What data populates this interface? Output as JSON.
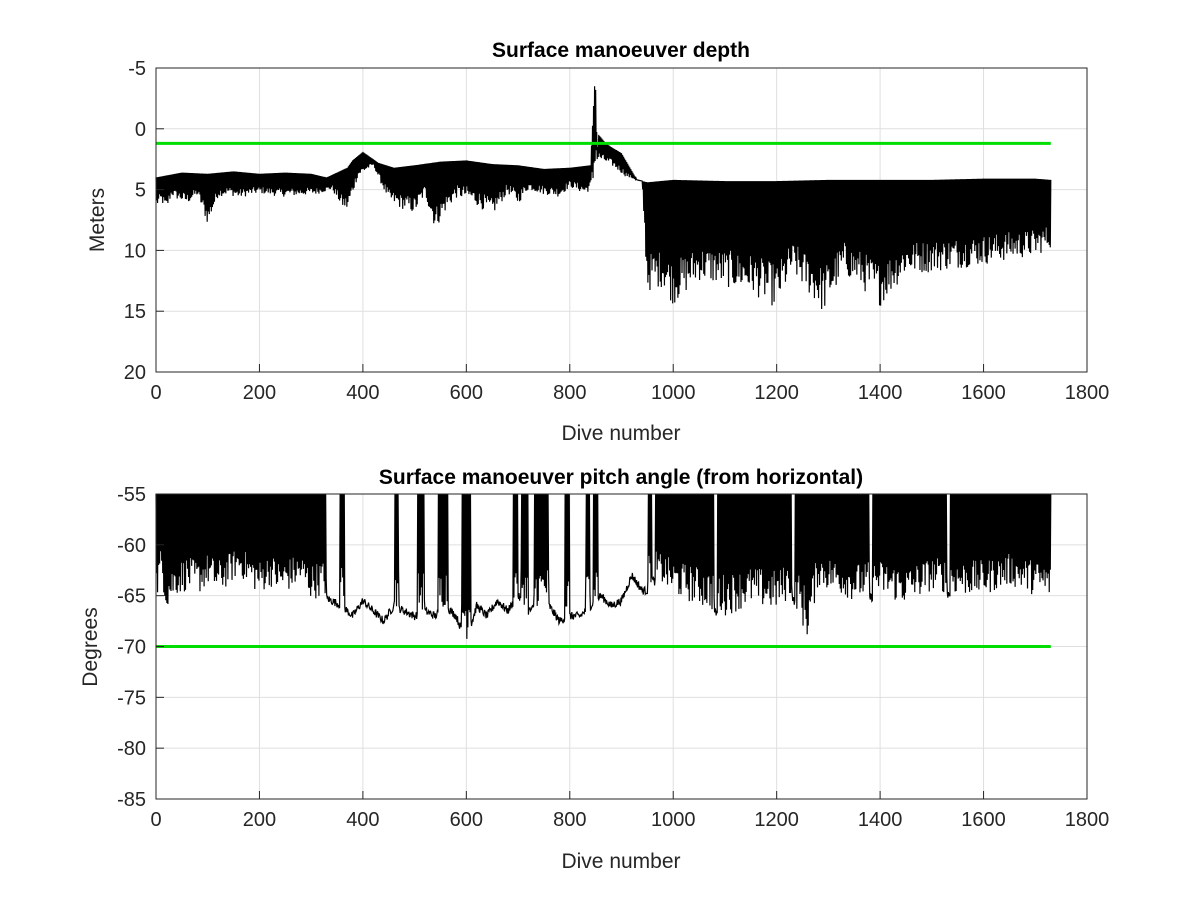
{
  "chart_data": [
    {
      "type": "line",
      "title": "Surface manoeuver depth",
      "xlabel": "Dive number",
      "ylabel": "Meters",
      "xlim": [
        0,
        1800
      ],
      "ylim": [
        -5,
        20
      ],
      "y_reversed": true,
      "grid": true,
      "xticks": [
        0,
        200,
        400,
        600,
        800,
        1000,
        1200,
        1400,
        1600,
        1800
      ],
      "yticks": [
        -5,
        0,
        5,
        10,
        15,
        20
      ],
      "reference_line": {
        "y": 1.2,
        "x_start": 0,
        "x_end": 1730,
        "color": "#00dd00"
      },
      "series": [
        {
          "color": "#000000",
          "upper": {
            "x": [
              0,
              50,
              100,
              150,
              200,
              250,
              300,
              330,
              350,
              370,
              380,
              400,
              430,
              460,
              500,
              550,
              600,
              650,
              700,
              750,
              800,
              840,
              848,
              850,
              853,
              856,
              862,
              870,
              880,
              900,
              930,
              950,
              1000,
              1100,
              1200,
              1300,
              1400,
              1500,
              1600,
              1700,
              1730
            ],
            "values": [
              4.0,
              3.6,
              3.7,
              3.5,
              3.7,
              3.6,
              3.7,
              4.0,
              3.6,
              3.2,
              2.6,
              1.9,
              2.8,
              3.2,
              3.0,
              2.7,
              2.6,
              2.9,
              3.0,
              3.3,
              3.2,
              3.0,
              -3.5,
              -3.2,
              2.0,
              0.5,
              0.8,
              1.2,
              1.5,
              2.0,
              4.2,
              4.4,
              4.2,
              4.3,
              4.3,
              4.2,
              4.2,
              4.2,
              4.1,
              4.1,
              4.2
            ]
          },
          "lower": {
            "x": [
              0,
              10,
              20,
              30,
              40,
              60,
              80,
              100,
              120,
              140,
              160,
              200,
              240,
              280,
              310,
              340,
              360,
              370,
              390,
              420,
              450,
              470,
              500,
              520,
              540,
              560,
              580,
              600,
              620,
              650,
              680,
              700,
              720,
              750,
              780,
              800,
              830,
              845,
              850,
              880,
              910,
              940,
              950,
              960,
              980,
              1000,
              1050,
              1100,
              1150,
              1200,
              1230,
              1260,
              1290,
              1330,
              1360,
              1400,
              1450,
              1500,
              1550,
              1600,
              1650,
              1700,
              1730
            ],
            "values": [
              6.5,
              6.0,
              6.8,
              5.5,
              5.8,
              6.2,
              5.5,
              7.9,
              5.6,
              5.4,
              5.7,
              5.3,
              5.6,
              5.5,
              5.4,
              5.0,
              6.5,
              6.8,
              4.0,
              3.0,
              6.0,
              6.5,
              7.0,
              5.5,
              8.3,
              6.8,
              5.7,
              5.8,
              6.3,
              7.2,
              5.3,
              6.2,
              5.0,
              5.4,
              5.6,
              4.8,
              5.4,
              4.8,
              2.5,
              3.0,
              4.0,
              4.3,
              13.5,
              13.2,
              13.0,
              14.5,
              12.5,
              13.0,
              13.5,
              14.8,
              12.0,
              13.5,
              15.2,
              12.0,
              13.0,
              14.6,
              12.0,
              11.8,
              11.5,
              11.2,
              10.8,
              10.5,
              9.8
            ]
          }
        }
      ]
    },
    {
      "type": "line",
      "title": "Surface manoeuver pitch angle (from horizontal)",
      "xlabel": "Dive number",
      "ylabel": "Degrees",
      "xlim": [
        0,
        1800
      ],
      "ylim": [
        -85,
        -55
      ],
      "grid": true,
      "xticks": [
        0,
        200,
        400,
        600,
        800,
        1000,
        1200,
        1400,
        1600,
        1800
      ],
      "yticks": [
        -55,
        -60,
        -65,
        -70,
        -75,
        -80,
        -85
      ],
      "reference_line": {
        "y": -70,
        "x_start": 0,
        "x_end": 1730,
        "color": "#00dd00"
      },
      "series": [
        {
          "color": "#000000",
          "upper": {
            "x": [
              0,
              1730
            ],
            "values": [
              -55,
              -55
            ]
          },
          "gaps": [
            [
              330,
              355
            ],
            [
              365,
              460
            ],
            [
              470,
              505
            ],
            [
              520,
              545
            ],
            [
              565,
              590
            ],
            [
              610,
              690
            ],
            [
              700,
              705
            ],
            [
              720,
              730
            ],
            [
              760,
              790
            ],
            [
              800,
              830
            ],
            [
              840,
              845
            ],
            [
              855,
              950
            ],
            [
              960,
              965
            ],
            [
              1080,
              1085
            ],
            [
              1230,
              1235
            ],
            [
              1380,
              1385
            ],
            [
              1530,
              1535
            ]
          ],
          "lower": {
            "x": [
              0,
              10,
              20,
              40,
              60,
              80,
              100,
              120,
              140,
              160,
              180,
              200,
              220,
              240,
              260,
              280,
              300,
              320,
              340,
              360,
              380,
              400,
              420,
              440,
              460,
              480,
              500,
              520,
              540,
              560,
              580,
              600,
              620,
              640,
              660,
              680,
              700,
              720,
              740,
              760,
              780,
              800,
              820,
              840,
              860,
              880,
              900,
              920,
              940,
              950,
              960,
              980,
              1000,
              1050,
              1100,
              1150,
              1200,
              1230,
              1260,
              1280,
              1300,
              1350,
              1400,
              1450,
              1500,
              1550,
              1600,
              1650,
              1700,
              1730
            ],
            "values": [
              -66.0,
              -63.0,
              -66.5,
              -65.0,
              -64.5,
              -65.0,
              -64.0,
              -65.0,
              -64.0,
              -63.0,
              -64.0,
              -65.0,
              -64.0,
              -65.0,
              -64.5,
              -64.0,
              -65.5,
              -65.0,
              -65.5,
              -66.0,
              -67.0,
              -65.5,
              -66.5,
              -67.5,
              -66.0,
              -66.5,
              -67.0,
              -66.5,
              -67.0,
              -66.0,
              -67.0,
              -69.5,
              -66.0,
              -67.0,
              -65.5,
              -66.5,
              -65.0,
              -66.5,
              -66.0,
              -66.0,
              -67.5,
              -67.0,
              -67.0,
              -66.0,
              -65.0,
              -66.0,
              -65.5,
              -63.0,
              -64.5,
              -64.5,
              -63.5,
              -64.0,
              -65.0,
              -66.0,
              -67.0,
              -66.0,
              -66.5,
              -65.0,
              -69.5,
              -64.0,
              -64.5,
              -65.5,
              -65.0,
              -66.0,
              -64.5,
              -65.0,
              -65.0,
              -64.0,
              -65.0,
              -65.5
            ]
          }
        }
      ]
    }
  ]
}
